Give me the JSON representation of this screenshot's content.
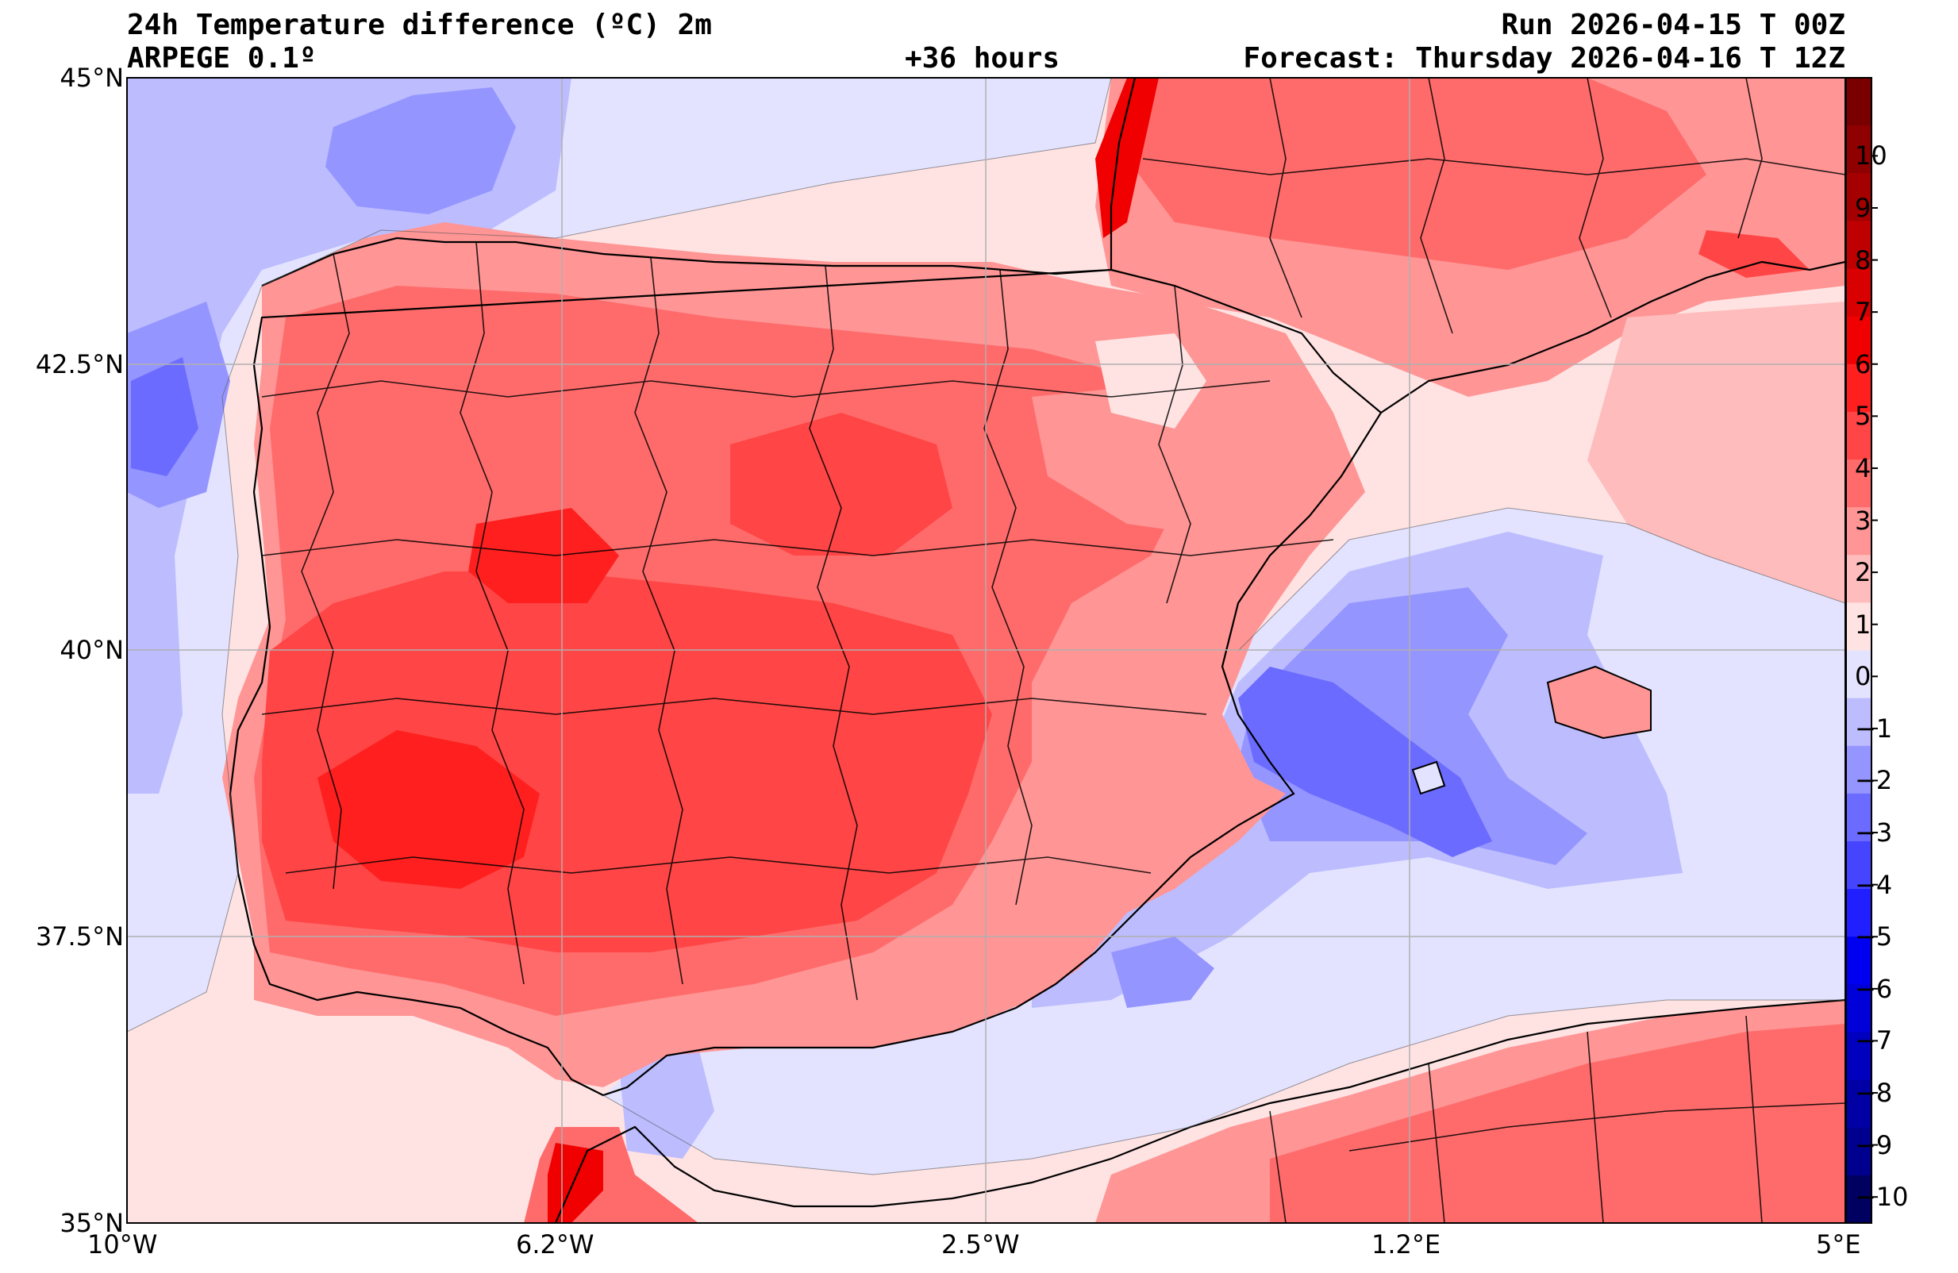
{
  "header": {
    "title": "24h Temperature difference (ºC) 2m",
    "model": "ARPEGE 0.1º",
    "lead_time": "+36 hours",
    "run": "Run 2026-04-15 T 00Z",
    "forecast": "Forecast: Thursday 2026-04-16 T 12Z"
  },
  "axes": {
    "lat_labels": [
      "45°N",
      "42.5°N",
      "40°N",
      "37.5°N",
      "35°N"
    ],
    "lon_labels": [
      "10°W",
      "6.2°W",
      "2.5°W",
      "1.2°E",
      "5°E"
    ]
  },
  "colorbar": {
    "tick_labels": [
      "10",
      "9",
      "8",
      "7",
      "6",
      "5",
      "4",
      "3",
      "2",
      "1",
      "0",
      "−1",
      "−2",
      "−3",
      "−4",
      "−5",
      "−6",
      "−7",
      "−8",
      "−9",
      "−10"
    ],
    "colors_top_to_bottom": [
      "#7a0000",
      "#8f0000",
      "#a50000",
      "#bf0000",
      "#d80000",
      "#f00000",
      "#ff1f1f",
      "#ff4545",
      "#ff6b6b",
      "#ff9595",
      "#ffbcbc",
      "#ffe3e3",
      "#e3e3ff",
      "#bcbcff",
      "#9595ff",
      "#6b6bff",
      "#4545ff",
      "#1f1fff",
      "#0000f0",
      "#0000d8",
      "#0000bf",
      "#0000a5",
      "#00008f",
      "#000060"
    ]
  }
}
